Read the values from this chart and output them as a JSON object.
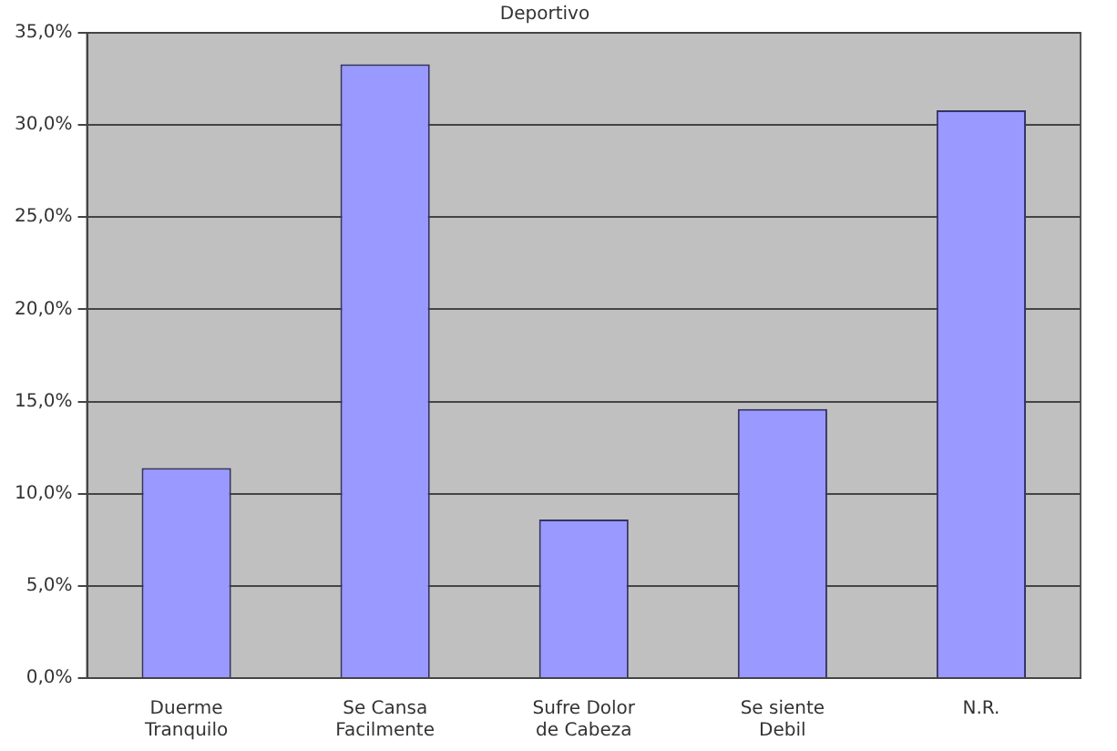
{
  "chart_data": {
    "type": "bar",
    "title": "Deportivo",
    "categories": [
      "Duerme Tranquilo",
      "Se Cansa Facilmente",
      "Sufre Dolor de Cabeza",
      "Se siente Debil",
      "N.R."
    ],
    "values": [
      11.4,
      33.3,
      8.6,
      14.6,
      30.8
    ],
    "color": "#9999ff",
    "ylim": [
      0,
      35
    ],
    "yticks": [
      {
        "value": 0,
        "label": "0,0%"
      },
      {
        "value": 5,
        "label": "5,0%"
      },
      {
        "value": 10,
        "label": "10,0%"
      },
      {
        "value": 15,
        "label": "15,0%"
      },
      {
        "value": 20,
        "label": "20,0%"
      },
      {
        "value": 25,
        "label": "25,0%"
      },
      {
        "value": 30,
        "label": "30,0%"
      },
      {
        "value": 35,
        "label": "35,0%"
      }
    ],
    "grid": "y",
    "legend": false
  }
}
